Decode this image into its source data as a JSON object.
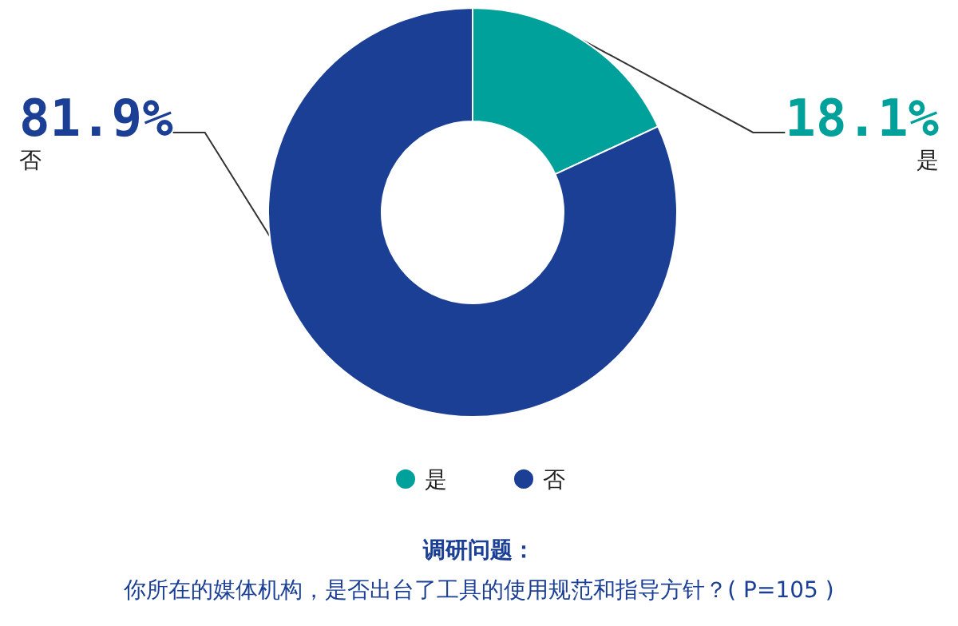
{
  "chart_data": {
    "type": "donut",
    "categories": [
      "是",
      "否"
    ],
    "values": [
      18.1,
      81.9
    ],
    "colors": [
      "#00a19a",
      "#1b3f94"
    ],
    "value_labels": [
      "18.1%",
      "81.9%"
    ],
    "legend": "bottom",
    "annotations": [
      "调研问题：",
      "你所在的媒体机构，是否出台了工具的使用规范和指导方针？( P=105 )"
    ]
  }
}
